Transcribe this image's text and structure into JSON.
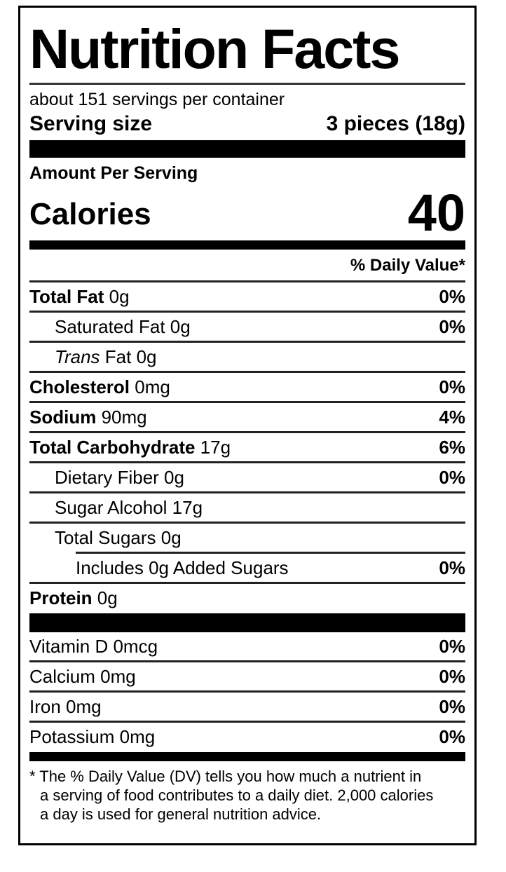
{
  "label": {
    "title": "Nutrition Facts",
    "servings_per_container": "about 151 servings per container",
    "serving_size_label": "Serving size",
    "serving_size_value": "3 pieces (18g)",
    "amount_per_serving": "Amount Per Serving",
    "calories_label": "Calories",
    "calories_value": "40",
    "daily_value_header": "% Daily Value*",
    "colors": {
      "ink": "#000000",
      "background": "#ffffff"
    },
    "nutrients": [
      {
        "name": "Total Fat",
        "amount": "0g",
        "dv": "0%",
        "bold": true,
        "indent": 0
      },
      {
        "name": "Saturated Fat",
        "amount": "0g",
        "dv": "0%",
        "bold": false,
        "indent": 1
      },
      {
        "name_italic": "Trans",
        "name": "Fat",
        "amount": "0g",
        "dv": "",
        "bold": false,
        "indent": 1
      },
      {
        "name": "Cholesterol",
        "amount": "0mg",
        "dv": "0%",
        "bold": true,
        "indent": 0
      },
      {
        "name": "Sodium",
        "amount": "90mg",
        "dv": "4%",
        "bold": true,
        "indent": 0
      },
      {
        "name": "Total Carbohydrate",
        "amount": "17g",
        "dv": "6%",
        "bold": true,
        "indent": 0
      },
      {
        "name": "Dietary Fiber",
        "amount": "0g",
        "dv": "0%",
        "bold": false,
        "indent": 1
      },
      {
        "name": "Sugar Alcohol",
        "amount": "17g",
        "dv": "",
        "bold": false,
        "indent": 1
      },
      {
        "name": "Total Sugars",
        "amount": "0g",
        "dv": "",
        "bold": false,
        "indent": 1
      },
      {
        "name": "Includes 0g Added Sugars",
        "amount": "",
        "dv": "0%",
        "bold": false,
        "indent": 2,
        "sep_indented": true
      },
      {
        "name": "Protein",
        "amount": "0g",
        "dv": "",
        "bold": true,
        "indent": 0
      }
    ],
    "vitamins": [
      {
        "name": "Vitamin D",
        "amount": "0mcg",
        "dv": "0%"
      },
      {
        "name": "Calcium",
        "amount": "0mg",
        "dv": "0%"
      },
      {
        "name": "Iron",
        "amount": "0mg",
        "dv": "0%"
      },
      {
        "name": "Potassium",
        "amount": "0mg",
        "dv": "0%"
      }
    ],
    "footnote_lines": [
      "* The % Daily Value (DV) tells you how much a nutrient in",
      "a serving of food contributes to a daily diet. 2,000 calories",
      "a day is used for general nutrition advice."
    ]
  }
}
